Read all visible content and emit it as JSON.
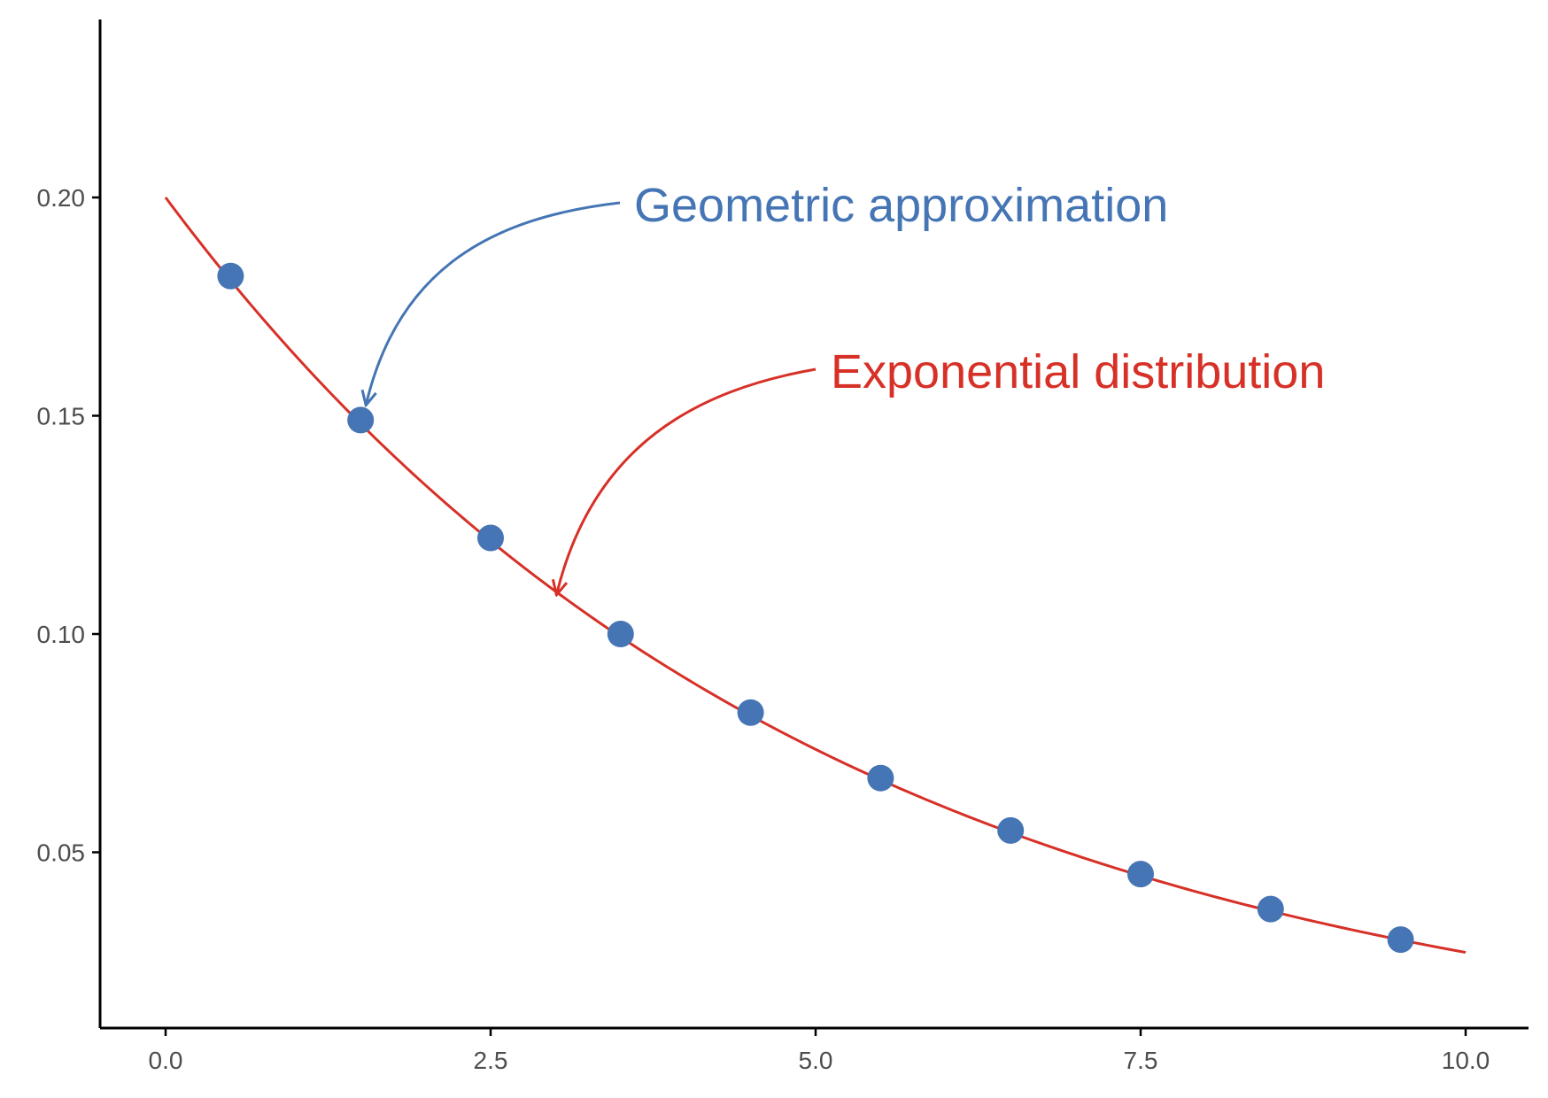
{
  "chart_data": {
    "type": "line",
    "title": "",
    "xlabel": "",
    "ylabel": "",
    "xlim": [
      -0.5,
      10.5
    ],
    "ylim": [
      0.009,
      0.24
    ],
    "x_ticks": [
      {
        "value": 0.0,
        "label": "0.0"
      },
      {
        "value": 2.5,
        "label": "2.5"
      },
      {
        "value": 5.0,
        "label": "5.0"
      },
      {
        "value": 7.5,
        "label": "7.5"
      },
      {
        "value": 10.0,
        "label": "10.0"
      }
    ],
    "y_ticks": [
      {
        "value": 0.05,
        "label": "0.05"
      },
      {
        "value": 0.1,
        "label": "0.10"
      },
      {
        "value": 0.15,
        "label": "0.15"
      },
      {
        "value": 0.2,
        "label": "0.20"
      }
    ],
    "grid": false,
    "series": [
      {
        "kind": "line",
        "color": "#d73027",
        "function": "exponential density, rate 0.2",
        "rate": 0.2,
        "x_range": [
          0,
          10
        ]
      },
      {
        "kind": "points",
        "color": "#4575b4",
        "x": [
          0.5,
          1.5,
          2.5,
          3.5,
          4.5,
          5.5,
          6.5,
          7.5,
          8.5,
          9.5
        ],
        "y": [
          0.182,
          0.149,
          0.122,
          0.1,
          0.082,
          0.067,
          0.055,
          0.045,
          0.037,
          0.03
        ]
      }
    ],
    "annotations": [
      {
        "text": "Geometric approximation",
        "color": "#4575b4",
        "points_to": {
          "x": 1.5,
          "y": 0.152
        }
      },
      {
        "text": "Exponential distribution",
        "color": "#d73027",
        "points_to": {
          "x": 3.0,
          "y": 0.111
        }
      }
    ]
  }
}
